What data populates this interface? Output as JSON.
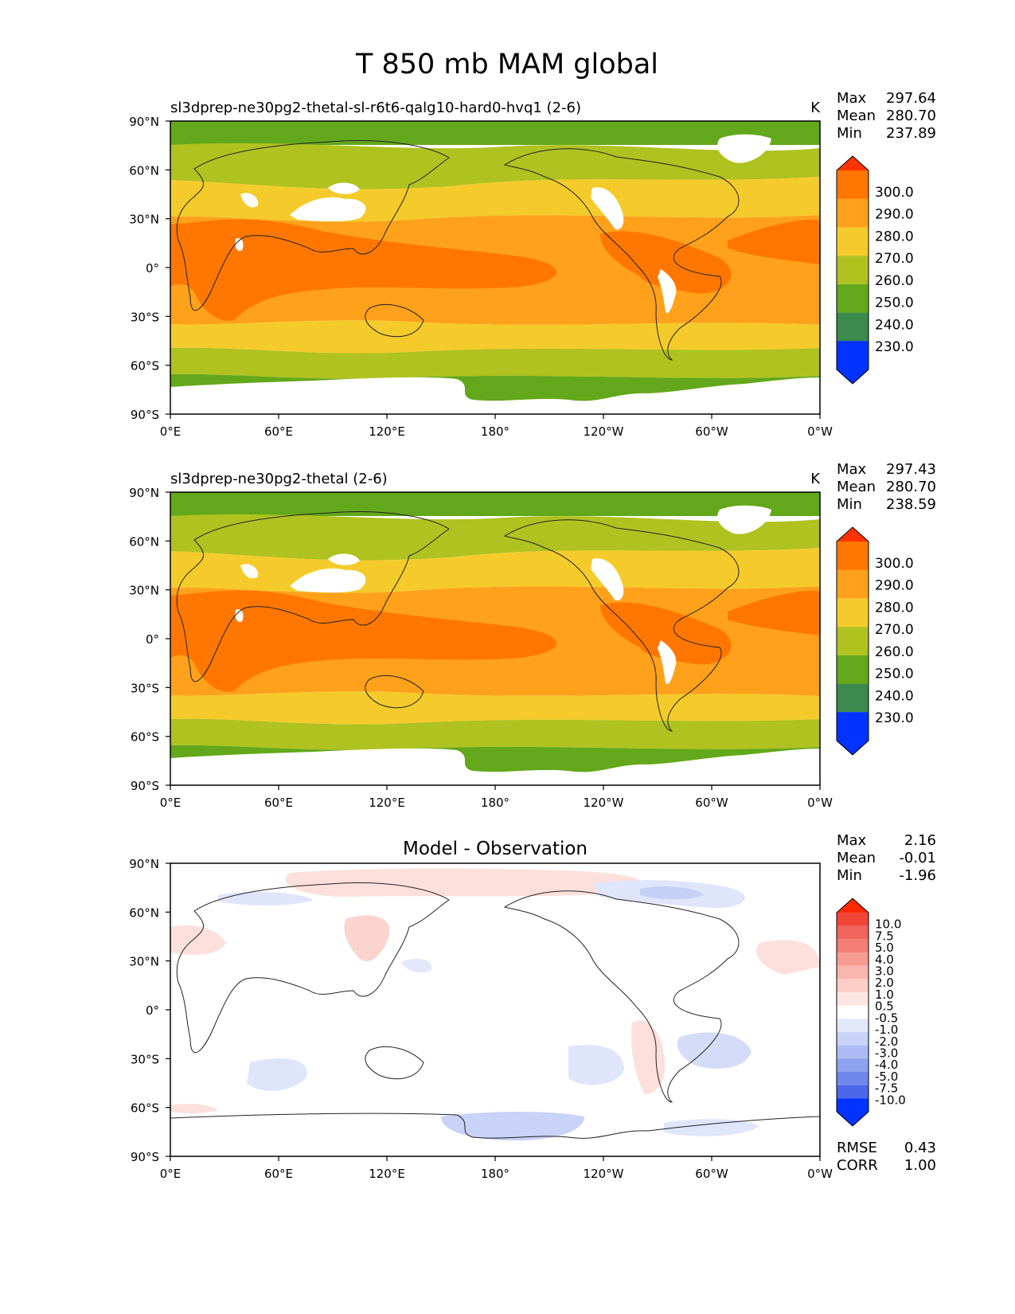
{
  "figure": {
    "title": "T 850 mb MAM global"
  },
  "axes": {
    "lat_ticks": [
      "90°N",
      "60°N",
      "30°N",
      "0°",
      "30°S",
      "60°S",
      "90°S"
    ],
    "lon_ticks": [
      "0°E",
      "60°E",
      "120°E",
      "180°",
      "120°W",
      "60°W",
      "0°W"
    ]
  },
  "panels": [
    {
      "id": "test",
      "title": "sl3dprep-ne30pg2-thetal-sl-r6t6-qalg10-hard0-hvq1 (2-6)",
      "units": "K",
      "stats": [
        {
          "label": "Max",
          "value": "297.64"
        },
        {
          "label": "Mean",
          "value": "280.70"
        },
        {
          "label": "Min",
          "value": "237.89"
        }
      ]
    },
    {
      "id": "reference",
      "title": "sl3dprep-ne30pg2-thetal (2-6)",
      "units": "K",
      "stats": [
        {
          "label": "Max",
          "value": "297.43"
        },
        {
          "label": "Mean",
          "value": "280.70"
        },
        {
          "label": "Min",
          "value": "238.59"
        }
      ]
    },
    {
      "id": "diff",
      "center_title": "Model - Observation",
      "stats": [
        {
          "label": "Max",
          "value": "2.16"
        },
        {
          "label": "Mean",
          "value": "-0.01"
        },
        {
          "label": "Min",
          "value": "-1.96"
        }
      ],
      "metrics": [
        {
          "label": "RMSE",
          "value": "0.43"
        },
        {
          "label": "CORR",
          "value": "1.00"
        }
      ]
    }
  ],
  "colorbars": {
    "temperature": {
      "labels": [
        "300.0",
        "290.0",
        "280.0",
        "270.0",
        "260.0",
        "250.0",
        "240.0",
        "230.0"
      ],
      "colors": [
        "#ff3300",
        "#ff7700",
        "#ffa11a",
        "#f4cb2b",
        "#b0c21f",
        "#63a81a",
        "#3c8a4e",
        "#00669e",
        "#0033ff"
      ]
    },
    "difference": {
      "labels": [
        "10.0",
        "7.5",
        "5.0",
        "4.0",
        "3.0",
        "2.0",
        "1.0",
        "0.5",
        "-0.5",
        "-1.0",
        "-2.0",
        "-3.0",
        "-4.0",
        "-5.0",
        "-7.5",
        "-10.0"
      ],
      "colors": [
        "#ff2a00",
        "#f2453a",
        "#f2655d",
        "#f47f76",
        "#f79b92",
        "#f9b6ae",
        "#fbcec8",
        "#fde6e2",
        "#ffffff",
        "#e3e8fb",
        "#c9d3f7",
        "#adbcf4",
        "#8ea2f0",
        "#6f87ec",
        "#4b66e8",
        "#2444f3",
        "#0033ff"
      ]
    }
  }
}
